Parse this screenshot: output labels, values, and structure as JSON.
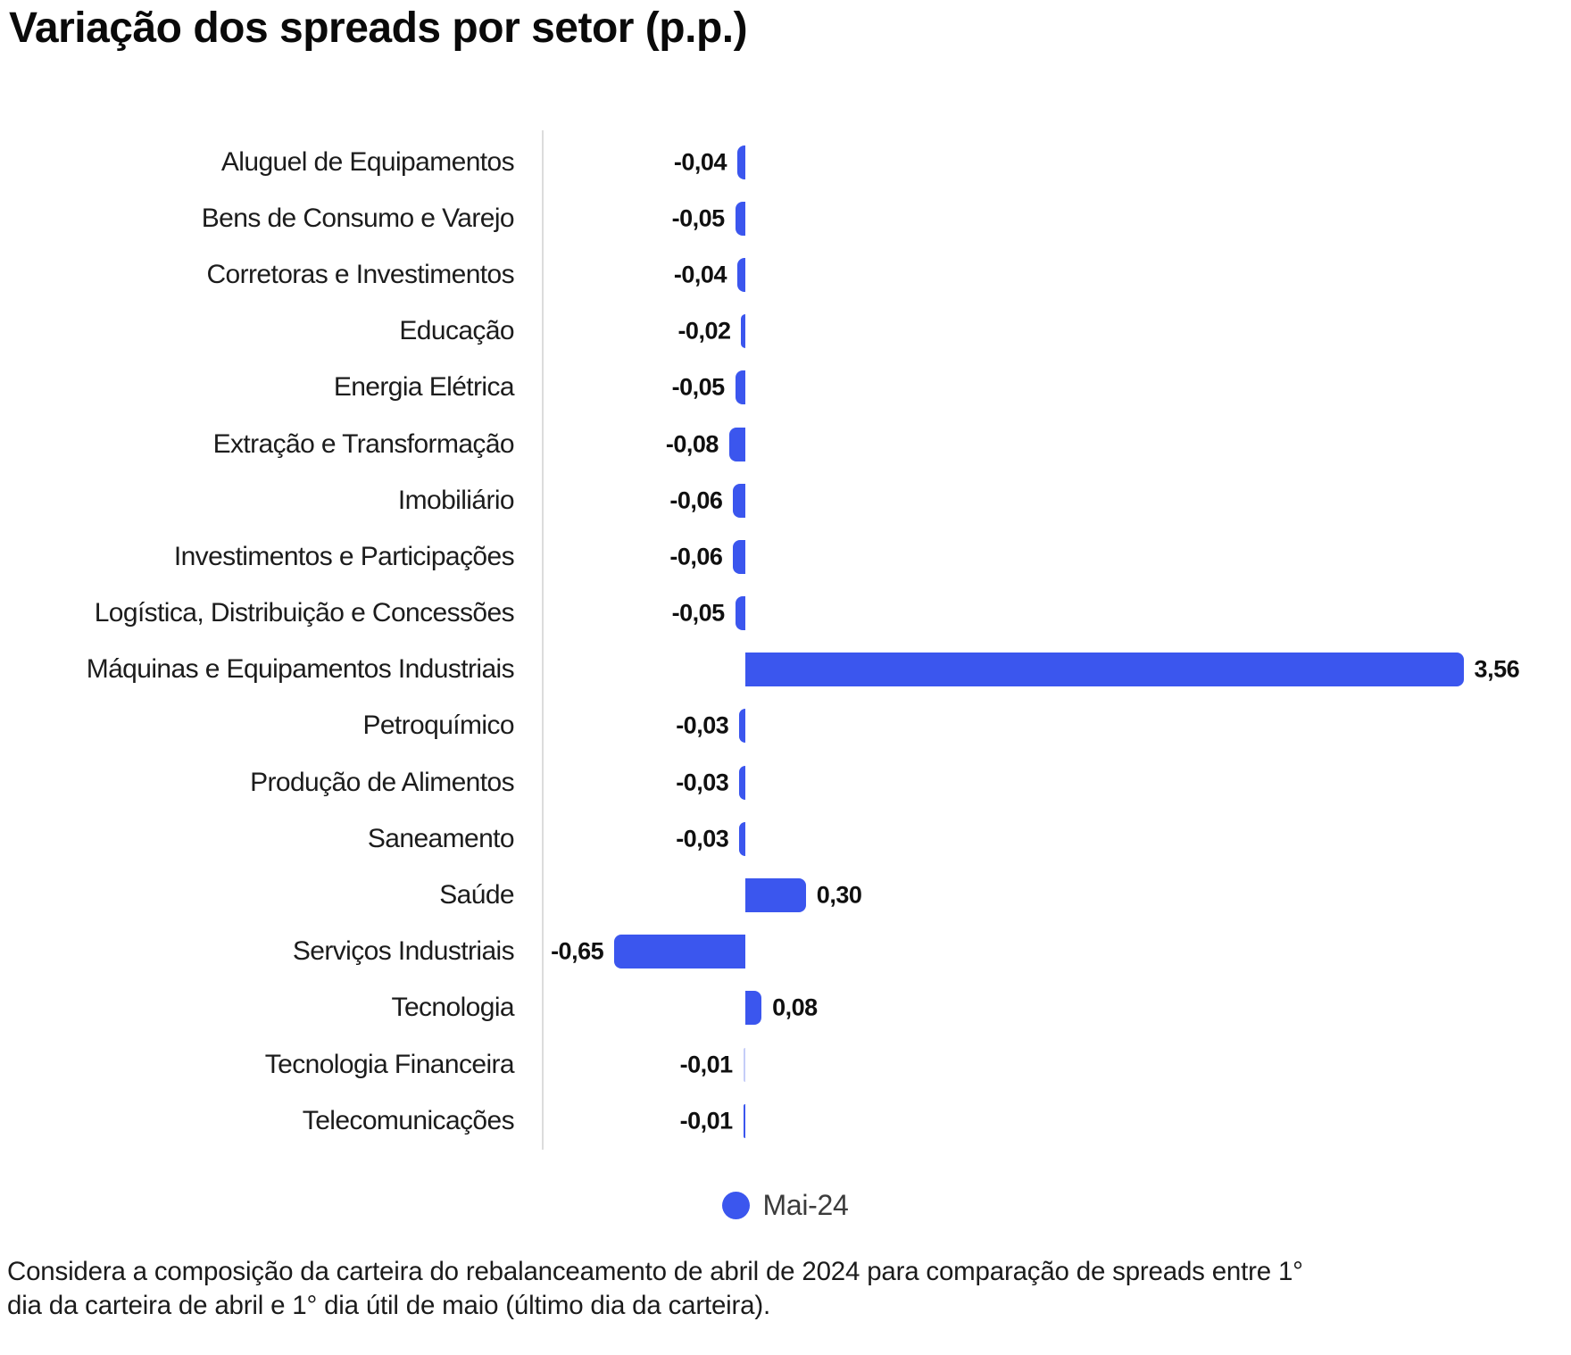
{
  "title": "Variação dos spreads por setor (p.p.)",
  "colors": {
    "bar": "#3b56ee",
    "bar_faint": "#c5cdf8",
    "axis_line": "#dcdcdc",
    "title_text": "#0a0a0a",
    "background": "#ffffff"
  },
  "legend": {
    "series_label": "Mai-24"
  },
  "footnote": {
    "line1": "Considera a composição da carteira do rebalanceamento de abril de 2024 para comparação de spreads entre 1°",
    "line2": "dia da carteira de abril e 1° dia útil de maio (último dia da carteira)."
  },
  "chart_data": {
    "type": "bar",
    "orientation": "horizontal",
    "title": "Variação dos spreads por setor (p.p.)",
    "unit": "p.p.",
    "series_name": "Mai-24",
    "xlim": [
      -1.0,
      4.1
    ],
    "grid": false,
    "legend_position": "bottom-center",
    "categories": [
      "Aluguel de Equipamentos",
      "Bens de Consumo e Varejo",
      "Corretoras e Investimentos",
      "Educação",
      "Energia Elétrica",
      "Extração e Transformação",
      "Imobiliário",
      "Investimentos e Participações",
      "Logística, Distribuição e Concessões",
      "Máquinas e Equipamentos Industriais",
      "Petroquímico",
      "Produção de Alimentos",
      "Saneamento",
      "Saúde",
      "Serviços Industriais",
      "Tecnologia",
      "Tecnologia Financeira",
      "Telecomunicações"
    ],
    "values": [
      -0.04,
      -0.05,
      -0.04,
      -0.02,
      -0.05,
      -0.08,
      -0.06,
      -0.06,
      -0.05,
      3.56,
      -0.03,
      -0.03,
      -0.03,
      0.3,
      -0.65,
      0.08,
      -0.01,
      -0.01
    ],
    "rows": [
      {
        "label": "Aluguel de Equipamentos",
        "value": -0.04,
        "display": "-0,04"
      },
      {
        "label": "Bens de Consumo e Varejo",
        "value": -0.05,
        "display": "-0,05"
      },
      {
        "label": "Corretoras e Investimentos",
        "value": -0.04,
        "display": "-0,04"
      },
      {
        "label": "Educação",
        "value": -0.02,
        "display": "-0,02"
      },
      {
        "label": "Energia Elétrica",
        "value": -0.05,
        "display": "-0,05"
      },
      {
        "label": "Extração e Transformação",
        "value": -0.08,
        "display": "-0,08"
      },
      {
        "label": "Imobiliário",
        "value": -0.06,
        "display": "-0,06"
      },
      {
        "label": "Investimentos e Participações",
        "value": -0.06,
        "display": "-0,06"
      },
      {
        "label": "Logística, Distribuição e Concessões",
        "value": -0.05,
        "display": "-0,05"
      },
      {
        "label": "Máquinas e Equipamentos Industriais",
        "value": 3.56,
        "display": "3,56"
      },
      {
        "label": "Petroquímico",
        "value": -0.03,
        "display": "-0,03"
      },
      {
        "label": "Produção de Alimentos",
        "value": -0.03,
        "display": "-0,03"
      },
      {
        "label": "Saneamento",
        "value": -0.03,
        "display": "-0,03"
      },
      {
        "label": "Saúde",
        "value": 0.3,
        "display": "0,30"
      },
      {
        "label": "Serviços Industriais",
        "value": -0.65,
        "display": "-0,65"
      },
      {
        "label": "Tecnologia",
        "value": 0.08,
        "display": "0,08"
      },
      {
        "label": "Tecnologia Financeira",
        "value": -0.01,
        "display": "-0,01",
        "faint": true
      },
      {
        "label": "Telecomunicações",
        "value": -0.01,
        "display": "-0,01"
      }
    ]
  }
}
